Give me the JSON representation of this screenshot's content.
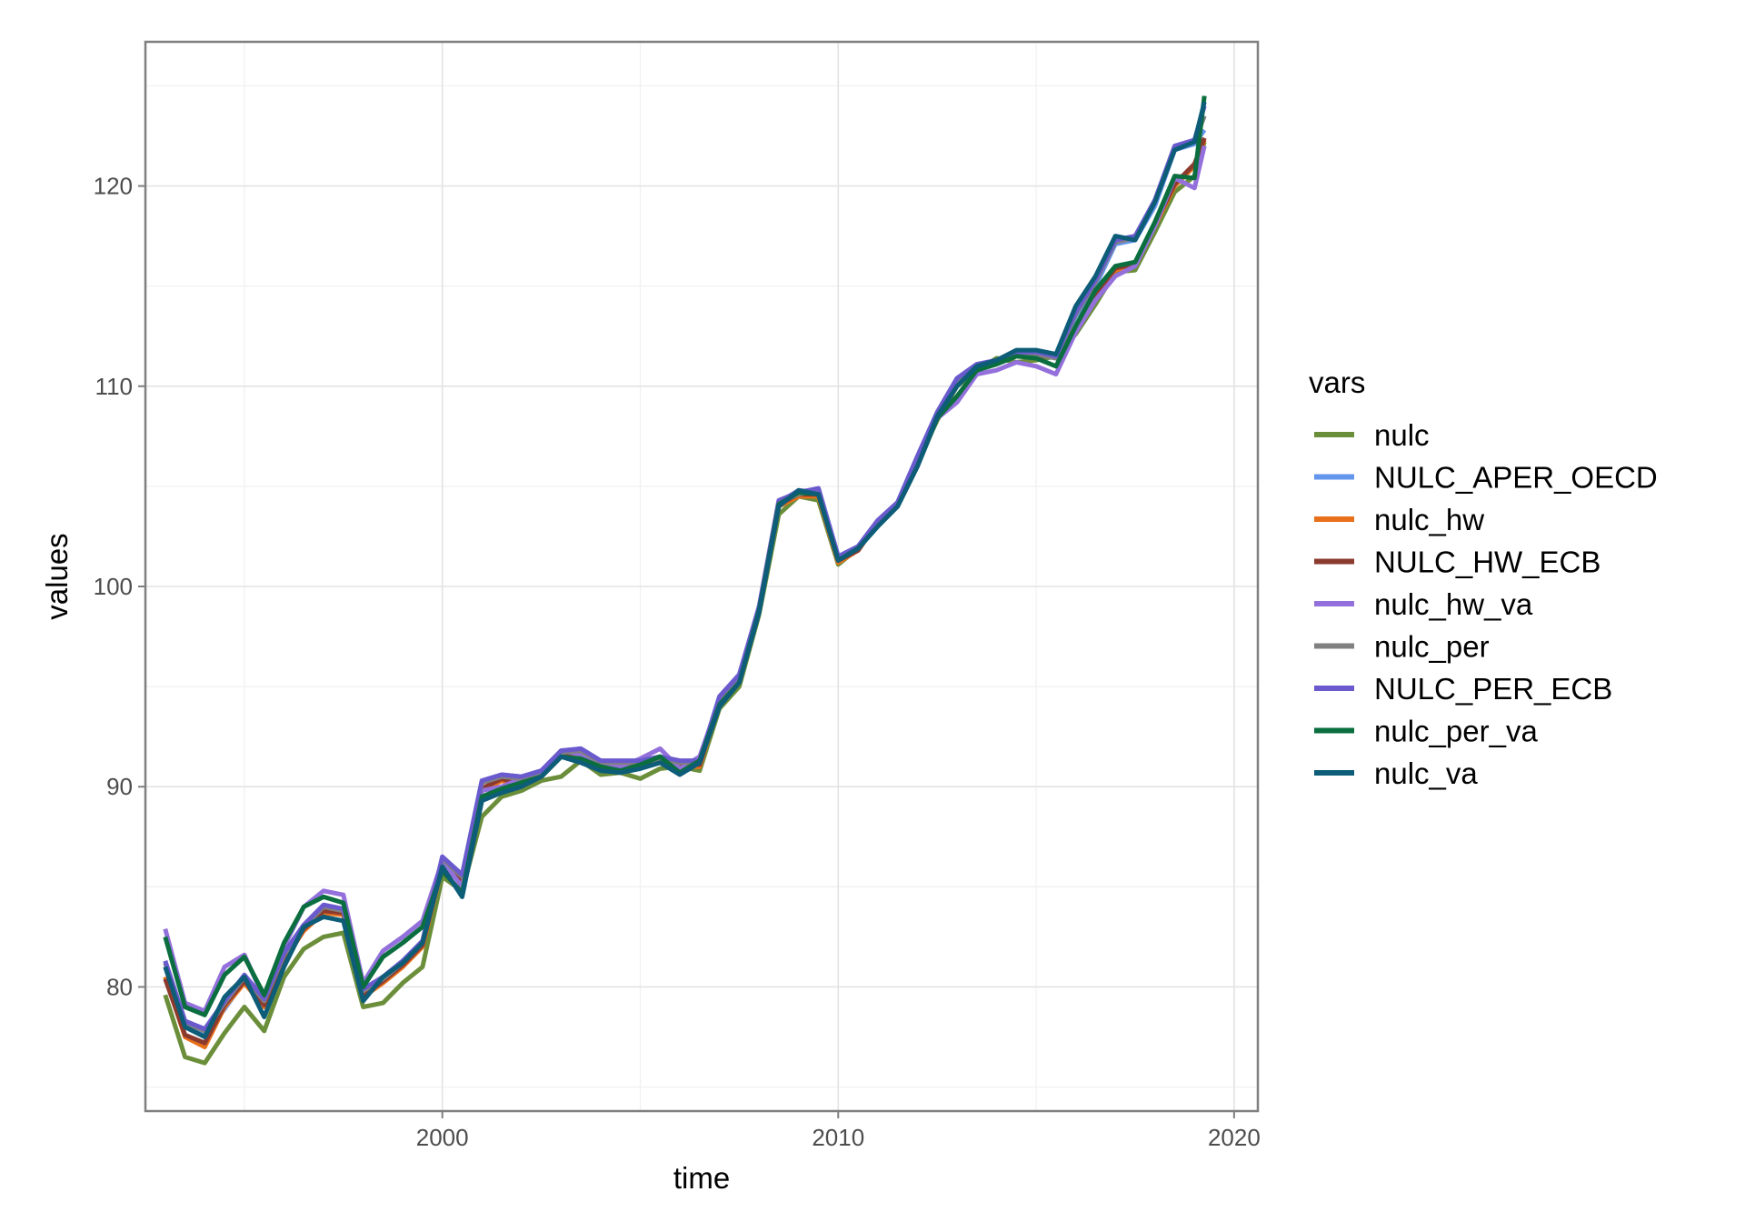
{
  "chart_data": {
    "type": "line",
    "xlabel": "time",
    "ylabel": "values",
    "xlim": [
      1992.5,
      2020.6
    ],
    "ylim": [
      73.8,
      127.2
    ],
    "x_ticks": [
      2000,
      2010,
      2020
    ],
    "y_ticks": [
      80,
      90,
      100,
      110,
      120
    ],
    "x_tick_labels": [
      "2000",
      "2010",
      "2020"
    ],
    "y_tick_labels": [
      "80",
      "90",
      "100",
      "110",
      "120"
    ],
    "grid": true,
    "legend": {
      "title": "vars",
      "position": "right"
    },
    "x": [
      1993.0,
      1993.5,
      1994.0,
      1994.5,
      1995.0,
      1995.5,
      1996.0,
      1996.5,
      1997.0,
      1997.5,
      1998.0,
      1998.5,
      1999.0,
      1999.5,
      2000.0,
      2000.5,
      2001.0,
      2001.5,
      2002.0,
      2002.5,
      2003.0,
      2003.5,
      2004.0,
      2004.5,
      2005.0,
      2005.5,
      2006.0,
      2006.5,
      2007.0,
      2007.5,
      2008.0,
      2008.5,
      2009.0,
      2009.5,
      2010.0,
      2010.5,
      2011.0,
      2011.5,
      2012.0,
      2012.5,
      2013.0,
      2013.5,
      2014.0,
      2014.5,
      2015.0,
      2015.5,
      2016.0,
      2016.5,
      2017.0,
      2017.5,
      2018.0,
      2018.5,
      2019.0,
      2019.25
    ],
    "series": [
      {
        "name": "nulc",
        "color": "#6b8e3a",
        "values": [
          79.6,
          76.5,
          76.2,
          77.7,
          79.0,
          77.8,
          80.5,
          81.9,
          82.5,
          82.7,
          79.0,
          79.2,
          80.2,
          81.0,
          85.5,
          84.8,
          88.5,
          89.5,
          89.8,
          90.3,
          90.5,
          91.3,
          90.6,
          90.7,
          90.4,
          90.9,
          91.0,
          90.8,
          93.9,
          95.0,
          98.6,
          103.6,
          104.5,
          104.3,
          101.1,
          101.9,
          103.1,
          104.0,
          106.2,
          108.3,
          110.0,
          110.8,
          111.4,
          111.2,
          111.3,
          111.5,
          112.6,
          114.1,
          115.7,
          115.8,
          117.7,
          119.7,
          120.5,
          122.2
        ]
      },
      {
        "name": "NULC_APER_OECD",
        "color": "#6495ed",
        "values": [
          81.0,
          78.0,
          77.6,
          78.9,
          80.3,
          79.2,
          81.5,
          83.0,
          84.0,
          83.9,
          79.8,
          80.5,
          81.3,
          82.2,
          86.5,
          85.6,
          90.3,
          90.6,
          90.5,
          90.8,
          91.8,
          91.9,
          91.3,
          91.2,
          91.3,
          91.5,
          91.2,
          91.3,
          94.5,
          95.6,
          98.9,
          104.2,
          104.6,
          104.9,
          101.5,
          102.0,
          103.3,
          104.2,
          106.5,
          108.7,
          110.4,
          111.0,
          111.2,
          111.7,
          111.6,
          111.4,
          113.5,
          115.0,
          117.1,
          117.3,
          119.0,
          121.8,
          122.1,
          122.8
        ]
      },
      {
        "name": "nulc_hw",
        "color": "#e8701a",
        "values": [
          80.5,
          77.5,
          77.0,
          79.0,
          80.2,
          79.0,
          81.3,
          82.8,
          83.7,
          83.6,
          79.5,
          80.2,
          81.0,
          82.0,
          86.0,
          85.2,
          89.8,
          90.3,
          90.0,
          90.5,
          91.5,
          91.6,
          91.0,
          91.1,
          91.0,
          91.2,
          91.0,
          91.0,
          94.2,
          95.4,
          98.8,
          104.0,
          104.5,
          104.5,
          101.2,
          101.8,
          103.2,
          104.1,
          106.3,
          108.5,
          110.2,
          110.9,
          111.3,
          111.5,
          111.5,
          111.5,
          112.8,
          114.5,
          115.8,
          116.0,
          118.0,
          120.0,
          121.0,
          122.3
        ]
      },
      {
        "name": "NULC_HW_ECB",
        "color": "#8b3a2e",
        "values": [
          80.4,
          77.6,
          77.2,
          79.1,
          80.3,
          79.1,
          81.4,
          82.9,
          83.8,
          83.7,
          79.6,
          80.3,
          81.1,
          82.1,
          86.1,
          85.3,
          89.9,
          90.4,
          90.1,
          90.6,
          91.6,
          91.7,
          91.1,
          91.1,
          91.1,
          91.3,
          91.1,
          91.1,
          94.3,
          95.4,
          98.8,
          104.1,
          104.6,
          104.6,
          101.3,
          101.8,
          103.2,
          104.1,
          106.3,
          108.5,
          110.2,
          110.9,
          111.3,
          111.5,
          111.5,
          111.5,
          112.9,
          114.6,
          115.9,
          116.1,
          118.1,
          120.1,
          121.1,
          122.4
        ]
      },
      {
        "name": "nulc_hw_va",
        "color": "#9370db",
        "values": [
          82.9,
          79.2,
          78.8,
          81.0,
          81.6,
          79.4,
          82.0,
          84.0,
          84.8,
          84.6,
          80.2,
          81.8,
          82.5,
          83.3,
          86.3,
          85.0,
          89.8,
          90.0,
          90.4,
          90.7,
          91.8,
          91.6,
          91.2,
          91.0,
          91.4,
          91.9,
          90.9,
          91.5,
          94.3,
          95.3,
          98.9,
          104.2,
          104.8,
          104.7,
          101.4,
          102.0,
          103.0,
          104.0,
          106.0,
          108.4,
          109.2,
          110.6,
          110.8,
          111.2,
          111.0,
          110.6,
          112.7,
          114.3,
          115.5,
          116.0,
          118.0,
          120.4,
          119.9,
          122.0
        ]
      },
      {
        "name": "nulc_per",
        "color": "#808080",
        "values": [
          81.2,
          78.2,
          77.8,
          79.2,
          80.5,
          79.3,
          81.6,
          83.0,
          84.0,
          83.8,
          79.8,
          80.4,
          81.2,
          82.2,
          86.4,
          85.5,
          90.2,
          90.5,
          90.4,
          90.7,
          91.7,
          91.8,
          91.2,
          91.2,
          91.2,
          91.4,
          91.2,
          91.2,
          94.4,
          95.5,
          98.9,
          104.2,
          104.6,
          104.8,
          101.4,
          101.9,
          103.2,
          104.1,
          106.4,
          108.6,
          110.3,
          111.0,
          111.2,
          111.6,
          111.6,
          111.4,
          113.6,
          115.2,
          117.2,
          117.4,
          119.2,
          121.9,
          122.2,
          123.5
        ]
      },
      {
        "name": "NULC_PER_ECB",
        "color": "#6a5acd",
        "values": [
          81.3,
          78.3,
          77.9,
          79.3,
          80.6,
          79.4,
          81.7,
          83.1,
          84.1,
          83.9,
          79.9,
          80.5,
          81.3,
          82.3,
          86.5,
          85.6,
          90.3,
          90.6,
          90.5,
          90.8,
          91.8,
          91.9,
          91.3,
          91.3,
          91.3,
          91.5,
          91.3,
          91.3,
          94.5,
          95.6,
          99.0,
          104.3,
          104.7,
          104.9,
          101.5,
          102.0,
          103.3,
          104.2,
          106.5,
          108.7,
          110.4,
          111.1,
          111.3,
          111.7,
          111.7,
          111.5,
          113.7,
          115.3,
          117.3,
          117.5,
          119.3,
          122.0,
          122.3,
          124.0
        ]
      },
      {
        "name": "nulc_per_va",
        "color": "#0b6e3f",
        "values": [
          82.5,
          79.0,
          78.6,
          80.6,
          81.5,
          79.6,
          82.2,
          84.0,
          84.5,
          84.2,
          80.0,
          81.5,
          82.2,
          83.0,
          85.8,
          84.7,
          89.5,
          89.9,
          90.2,
          90.5,
          91.5,
          91.4,
          91.0,
          90.8,
          91.1,
          91.5,
          90.7,
          91.3,
          94.1,
          95.2,
          98.8,
          104.1,
          104.7,
          104.6,
          101.3,
          101.9,
          103.0,
          104.0,
          106.0,
          108.4,
          109.5,
          110.8,
          111.1,
          111.5,
          111.4,
          111.0,
          113.0,
          114.8,
          116.0,
          116.2,
          118.2,
          120.5,
          120.4,
          124.5
        ]
      },
      {
        "name": "nulc_va",
        "color": "#0d5d78",
        "values": [
          81.0,
          78.0,
          77.5,
          79.5,
          80.5,
          78.5,
          81.0,
          83.0,
          83.5,
          83.3,
          79.3,
          80.5,
          81.2,
          82.2,
          86.0,
          84.5,
          89.3,
          89.7,
          90.0,
          90.5,
          91.5,
          91.2,
          90.8,
          90.7,
          90.9,
          91.2,
          90.6,
          91.2,
          94.0,
          95.2,
          98.7,
          104.0,
          104.8,
          104.6,
          101.3,
          101.9,
          103.0,
          104.0,
          106.0,
          108.5,
          110.0,
          111.0,
          111.3,
          111.8,
          111.8,
          111.6,
          114.0,
          115.5,
          117.5,
          117.3,
          119.2,
          121.8,
          122.2,
          124.2
        ]
      }
    ]
  }
}
